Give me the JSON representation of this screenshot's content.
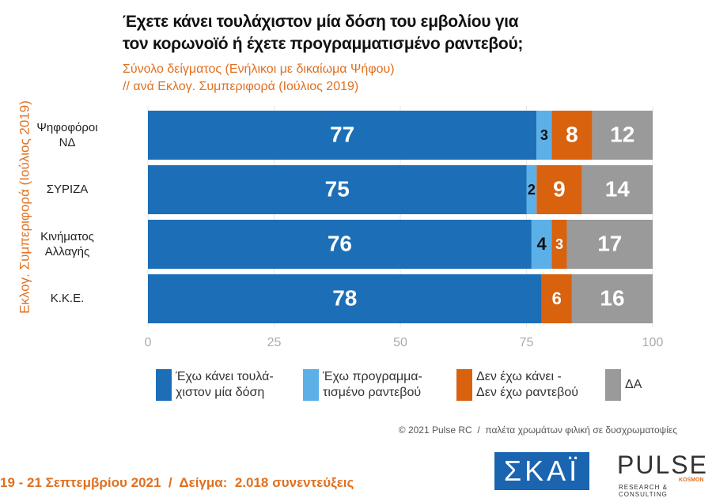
{
  "chart_data": {
    "type": "stacked_barh",
    "title": "Έχετε κάνει τουλάχιστον μία δόση του εμβολίου για\nτον κορωνοϊό ή έχετε προγραμματισμένο ραντεβού;",
    "subtitle": "Σύνολο δείγματος (Ενήλικοι με δικαίωμα Ψήφου)\n // ανά Εκλογ. Συμπεριφορά (Ιούλιος 2019)",
    "y_label": "Εκλογ. Συμπεριφορά (Ιούλιος 2019)",
    "categories": [
      "Ψηφοφόροι\nΝΔ",
      "ΣΥΡΙΖΑ",
      "Κινήματος\nΑλλαγής",
      "Κ.Κ.Ε."
    ],
    "series": [
      {
        "name": "Έχω κάνει τουλά-\nχιστον μία δόση",
        "color": "#1c6fb6",
        "values": [
          77,
          75,
          76,
          78
        ]
      },
      {
        "name": "Έχω προγραμμα-\nτισμένο ραντεβού",
        "color": "#5cb0e8",
        "values": [
          3,
          2,
          4,
          null
        ]
      },
      {
        "name": "Δεν έχω κάνει -\nΔεν έχω ραντεβού",
        "color": "#d9620f",
        "values": [
          8,
          9,
          3,
          6
        ]
      },
      {
        "name": "ΔΑ",
        "color": "#9a9a9a",
        "values": [
          12,
          14,
          17,
          16
        ]
      }
    ],
    "xlim": [
      0,
      100
    ],
    "xticks": [
      0,
      25,
      50,
      75,
      100
    ],
    "grid": true,
    "legend": "bottom",
    "footer": {
      "credit": "© 2021 Pulse RC  /  παλέτα χρωμάτων φιλική σε δυσχρωματοψίες",
      "fieldwork": "19 - 21 Σεπτεμβρίου 2021  /  Δείγμα:  2.018 συνεντεύξεις",
      "logo_skai": "ΣΚΑΪ",
      "logo_pulse": "PULSE",
      "logo_pulse_sub": "RESEARCH & CONSULTING",
      "logo_kosmon": "KOSMON"
    }
  }
}
